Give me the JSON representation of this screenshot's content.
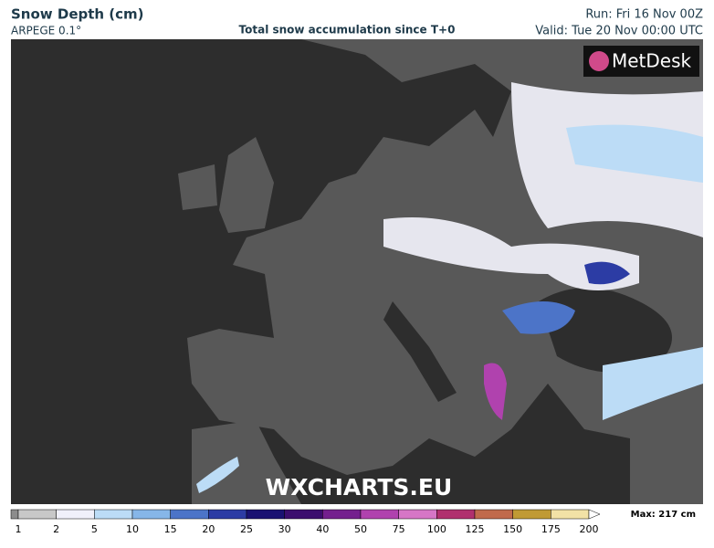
{
  "header": {
    "title": "Snow Depth (cm)",
    "model": "ARPEGE 0.1°",
    "subtitle": "Total snow accumulation since T+0",
    "run": "Run: Fri 16 Nov 00Z",
    "valid": "Valid: Tue 20 Nov 00:00 UTC"
  },
  "map": {
    "logo": "MetDesk",
    "watermark": "WXCHARTS.EU"
  },
  "legend": {
    "max_label": "Max: 217 cm",
    "ticks": [
      "1",
      "2",
      "5",
      "10",
      "15",
      "20",
      "25",
      "30",
      "40",
      "50",
      "75",
      "100",
      "125",
      "150",
      "175",
      "200"
    ],
    "colors": [
      "#8c8c8c",
      "#c8c8c8",
      "#f0f0fa",
      "#bcdcf6",
      "#86b6e8",
      "#4c74c8",
      "#2c3ca4",
      "#1a1272",
      "#3c0e6e",
      "#74208e",
      "#b042ae",
      "#d676c6",
      "#b0306e",
      "#c06a4c",
      "#c09a34",
      "#f2e2a6",
      "#ffffff"
    ]
  }
}
